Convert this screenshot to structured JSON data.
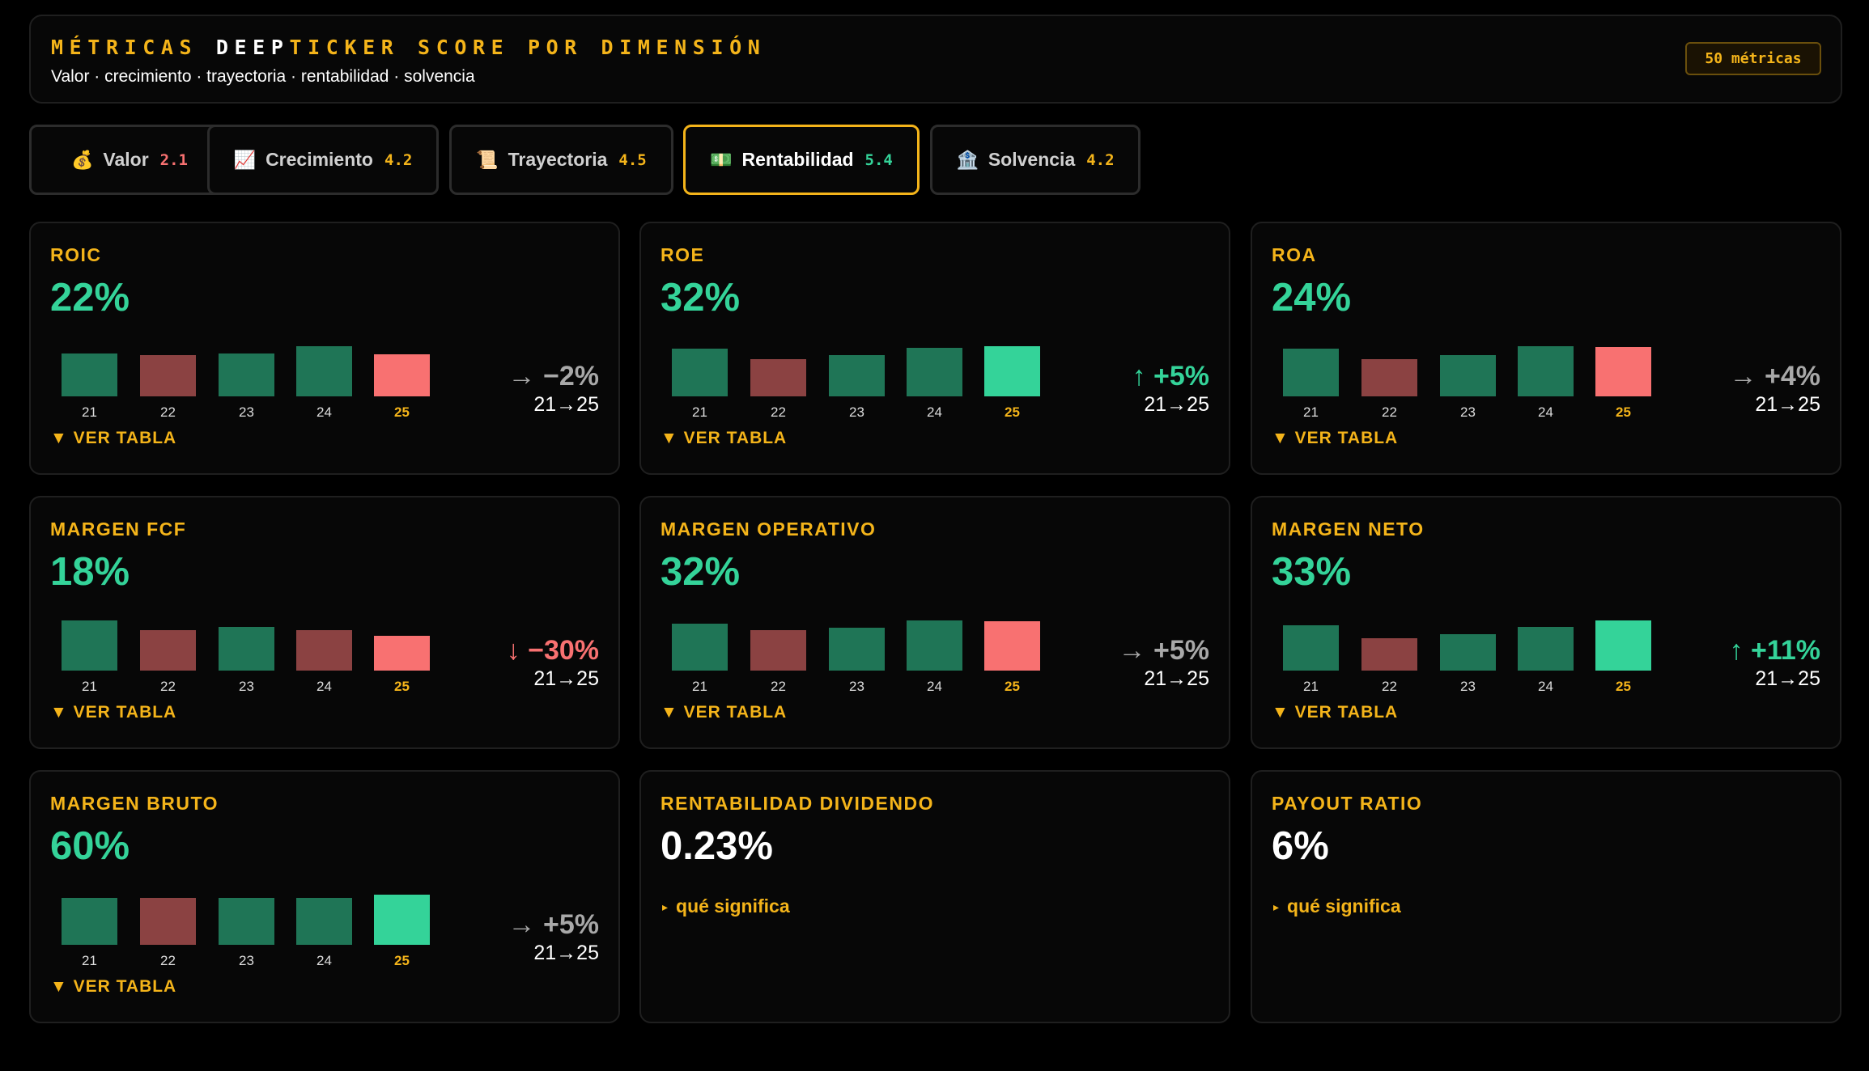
{
  "header": {
    "title_parts": [
      {
        "text": "MÉTRICAS ",
        "highlight": false
      },
      {
        "text": "DEEP",
        "highlight": true
      },
      {
        "text": "TICKER SCORE POR DIMENSIÓN",
        "highlight": false
      }
    ],
    "subtitle": "Valor · crecimiento · trayectoria · rentabilidad · solvencia",
    "metric_count": "50 métricas"
  },
  "colors": {
    "accent": "#f4b41a",
    "good": "#1f7556",
    "bad": "#8b4242",
    "good_bright": "#34d399",
    "bad_bright": "#f87171",
    "neutral": "#a8a8a8",
    "white": "#ffffff"
  },
  "tabs": [
    {
      "id": "valor",
      "icon": "💰",
      "icon_name": "money-bag-icon",
      "label": "Valor",
      "score": "2.1",
      "score_color": "#f87171",
      "active": false
    },
    {
      "id": "crecimiento",
      "icon": "📈",
      "icon_name": "chart-increasing-icon",
      "label": "Crecimiento",
      "score": "4.2",
      "score_color": "#f4b41a",
      "active": false
    },
    {
      "id": "trayectoria",
      "icon": "📜",
      "icon_name": "scroll-icon",
      "label": "Trayectoria",
      "score": "4.5",
      "score_color": "#f4b41a",
      "active": false
    },
    {
      "id": "rentabilidad",
      "icon": "💵",
      "icon_name": "banknote-icon",
      "label": "Rentabilidad",
      "score": "5.4",
      "score_color": "#34d399",
      "active": true
    },
    {
      "id": "solvencia",
      "icon": "🏦",
      "icon_name": "bank-icon",
      "label": "Solvencia",
      "score": "4.2",
      "score_color": "#f4b41a",
      "active": false
    }
  ],
  "years": [
    "21",
    "22",
    "23",
    "24",
    "25"
  ],
  "toggle_label": "▼ VER TABLA",
  "info_label": "qué significa",
  "metrics": [
    {
      "title": "ROIC",
      "value": "22%",
      "value_color": "#34d399",
      "bars": [
        {
          "level": 0.66,
          "tone": "good"
        },
        {
          "level": 0.64,
          "tone": "bad"
        },
        {
          "level": 0.66,
          "tone": "good"
        },
        {
          "level": 0.78,
          "tone": "good"
        },
        {
          "level": 0.65,
          "tone": "bad_bright"
        }
      ],
      "trend_arrow": "→",
      "trend_value": "−2%",
      "trend_color": "#a8a8a8",
      "range": "21→25"
    },
    {
      "title": "ROE",
      "value": "32%",
      "value_color": "#34d399",
      "bars": [
        {
          "level": 0.74,
          "tone": "good"
        },
        {
          "level": 0.57,
          "tone": "bad"
        },
        {
          "level": 0.64,
          "tone": "good"
        },
        {
          "level": 0.75,
          "tone": "good"
        },
        {
          "level": 0.78,
          "tone": "good_bright"
        }
      ],
      "trend_arrow": "↑",
      "trend_value": "+5%",
      "trend_color": "#34d399",
      "range": "21→25"
    },
    {
      "title": "ROA",
      "value": "24%",
      "value_color": "#34d399",
      "bars": [
        {
          "level": 0.74,
          "tone": "good"
        },
        {
          "level": 0.58,
          "tone": "bad"
        },
        {
          "level": 0.64,
          "tone": "good"
        },
        {
          "level": 0.78,
          "tone": "good"
        },
        {
          "level": 0.76,
          "tone": "bad_bright"
        }
      ],
      "trend_arrow": "→",
      "trend_value": "+4%",
      "trend_color": "#a8a8a8",
      "range": "21→25"
    },
    {
      "title": "MARGEN FCF",
      "value": "18%",
      "value_color": "#34d399",
      "bars": [
        {
          "level": 0.77,
          "tone": "good"
        },
        {
          "level": 0.62,
          "tone": "bad"
        },
        {
          "level": 0.67,
          "tone": "good"
        },
        {
          "level": 0.62,
          "tone": "bad"
        },
        {
          "level": 0.54,
          "tone": "bad_bright"
        }
      ],
      "trend_arrow": "↓",
      "trend_value": "−30%",
      "trend_color": "#f87171",
      "range": "21→25"
    },
    {
      "title": "MARGEN OPERATIVO",
      "value": "32%",
      "value_color": "#34d399",
      "bars": [
        {
          "level": 0.72,
          "tone": "good"
        },
        {
          "level": 0.62,
          "tone": "bad"
        },
        {
          "level": 0.66,
          "tone": "good"
        },
        {
          "level": 0.77,
          "tone": "good"
        },
        {
          "level": 0.76,
          "tone": "bad_bright"
        }
      ],
      "trend_arrow": "→",
      "trend_value": "+5%",
      "trend_color": "#a8a8a8",
      "range": "21→25"
    },
    {
      "title": "MARGEN NETO",
      "value": "33%",
      "value_color": "#34d399",
      "bars": [
        {
          "level": 0.7,
          "tone": "good"
        },
        {
          "level": 0.5,
          "tone": "bad"
        },
        {
          "level": 0.56,
          "tone": "good"
        },
        {
          "level": 0.67,
          "tone": "good"
        },
        {
          "level": 0.77,
          "tone": "good_bright"
        }
      ],
      "trend_arrow": "↑",
      "trend_value": "+11%",
      "trend_color": "#34d399",
      "range": "21→25"
    },
    {
      "title": "MARGEN BRUTO",
      "value": "60%",
      "value_color": "#34d399",
      "bars": [
        {
          "level": 0.72,
          "tone": "good"
        },
        {
          "level": 0.72,
          "tone": "bad"
        },
        {
          "level": 0.73,
          "tone": "good"
        },
        {
          "level": 0.73,
          "tone": "good"
        },
        {
          "level": 0.77,
          "tone": "good_bright"
        }
      ],
      "trend_arrow": "→",
      "trend_value": "+5%",
      "trend_color": "#a8a8a8",
      "range": "21→25"
    }
  ],
  "info_metrics": [
    {
      "title": "RENTABILIDAD DIVIDENDO",
      "value": "0.23%",
      "value_color": "#ffffff"
    },
    {
      "title": "PAYOUT RATIO",
      "value": "6%",
      "value_color": "#ffffff"
    }
  ]
}
